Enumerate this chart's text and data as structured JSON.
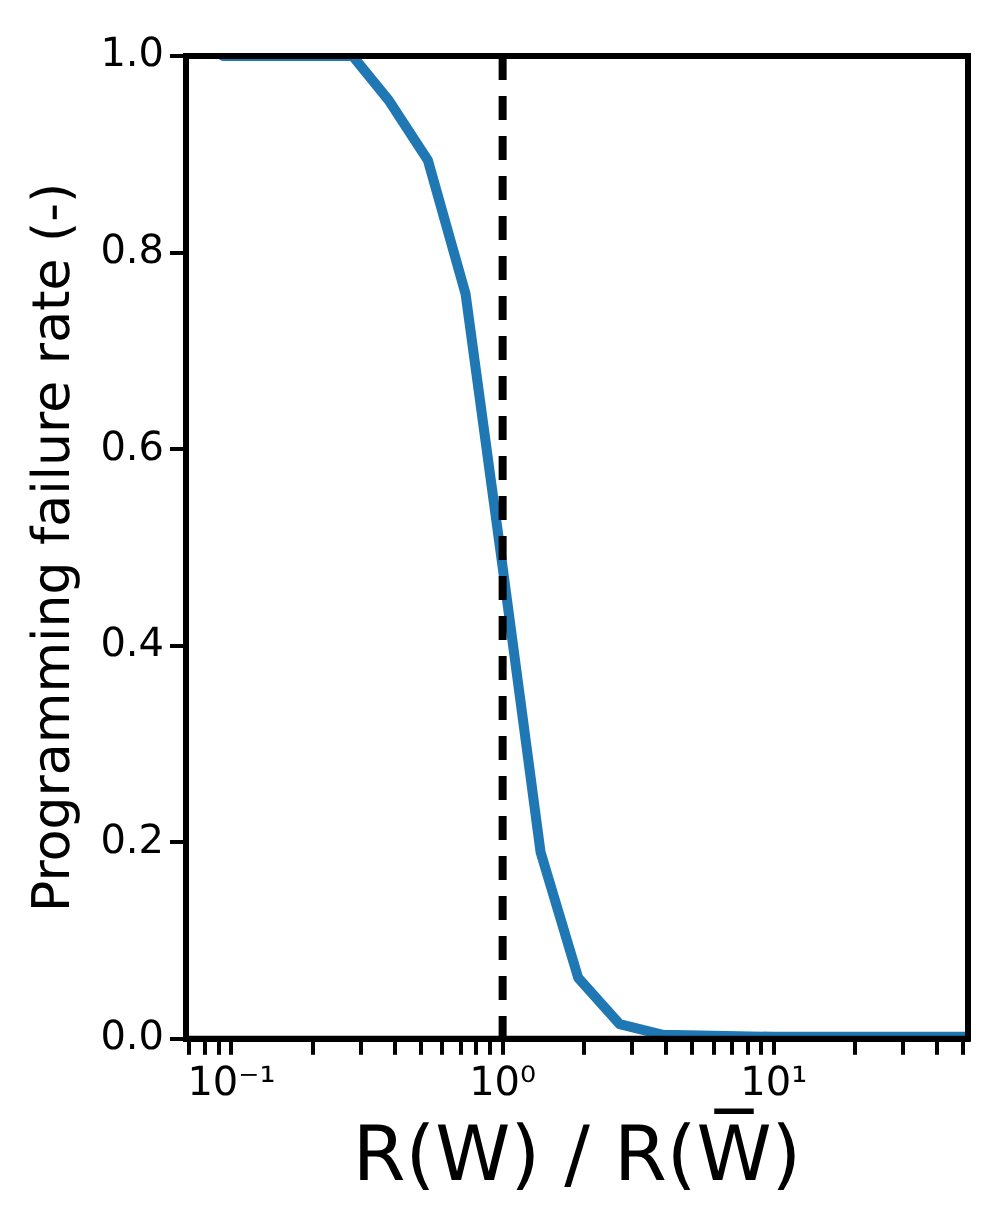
{
  "chart_data": {
    "type": "line",
    "xlabel": "R(W) / R(W̅)",
    "ylabel": "Programming failure rate (-)",
    "log": "x",
    "grid": false,
    "legend": false,
    "marker": "none",
    "line_style": "solid",
    "xlim": [
      0.068,
      52
    ],
    "ylim": [
      0,
      1
    ],
    "xticks": [
      {
        "value": 0.07,
        "label": null
      },
      {
        "value": 0.08,
        "label": null
      },
      {
        "value": 0.09,
        "label": null
      },
      {
        "value": 0.1,
        "label": "10⁻¹"
      },
      {
        "value": 0.2,
        "label": null
      },
      {
        "value": 0.3,
        "label": null
      },
      {
        "value": 0.4,
        "label": null
      },
      {
        "value": 0.5,
        "label": null
      },
      {
        "value": 0.6,
        "label": null
      },
      {
        "value": 0.7,
        "label": null
      },
      {
        "value": 0.8,
        "label": null
      },
      {
        "value": 0.9,
        "label": null
      },
      {
        "value": 1,
        "label": "10⁰"
      },
      {
        "value": 2,
        "label": null
      },
      {
        "value": 3,
        "label": null
      },
      {
        "value": 4,
        "label": null
      },
      {
        "value": 5,
        "label": null
      },
      {
        "value": 6,
        "label": null
      },
      {
        "value": 7,
        "label": null
      },
      {
        "value": 8,
        "label": null
      },
      {
        "value": 9,
        "label": null
      },
      {
        "value": 10,
        "label": "10¹"
      },
      {
        "value": 20,
        "label": null
      },
      {
        "value": 30,
        "label": null
      },
      {
        "value": 40,
        "label": null
      },
      {
        "value": 50,
        "label": null
      }
    ],
    "yticks": [
      {
        "value": 0,
        "label": "0.0"
      },
      {
        "value": 0.2,
        "label": "0.2"
      },
      {
        "value": 0.4,
        "label": "0.4"
      },
      {
        "value": 0.6,
        "label": "0.6"
      },
      {
        "value": 0.8,
        "label": "0.8"
      },
      {
        "value": 1,
        "label": "1.0"
      }
    ],
    "ref_lines": [
      {
        "axis": "x",
        "value": 1,
        "color": "#000000",
        "line_style": "dashed"
      }
    ],
    "series": [
      {
        "color": "#1f77b4",
        "x": [
          0.093,
          0.28,
          0.38,
          0.53,
          0.73,
          1.0,
          1.38,
          1.9,
          2.7,
          3.9,
          10,
          52
        ],
        "values": [
          1.0,
          1.0,
          0.955,
          0.894,
          0.758,
          0.48,
          0.19,
          0.062,
          0.015,
          0.004,
          0.002,
          0.002
        ]
      }
    ]
  }
}
